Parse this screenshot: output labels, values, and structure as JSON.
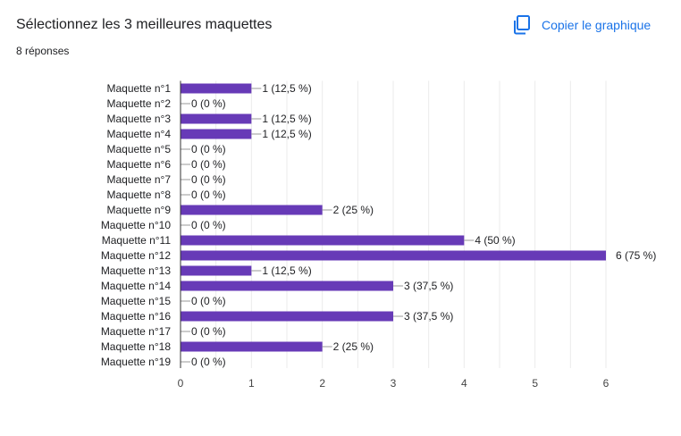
{
  "header": {
    "title": "Sélectionnez les 3 meilleures maquettes",
    "responses": "8 réponses",
    "copy_label": "Copier le graphique"
  },
  "colors": {
    "bar": "#673ab7",
    "accent": "#1a73e8",
    "grid": "#ebebeb",
    "axis": "#333333",
    "text": "#202124"
  },
  "chart_data": {
    "type": "bar",
    "orientation": "horizontal",
    "categories": [
      "Maquette n°1",
      "Maquette n°2",
      "Maquette n°3",
      "Maquette n°4",
      "Maquette n°5",
      "Maquette n°6",
      "Maquette n°7",
      "Maquette n°8",
      "Maquette n°9",
      "Maquette n°10",
      "Maquette n°11",
      "Maquette n°12",
      "Maquette n°13",
      "Maquette n°14",
      "Maquette n°15",
      "Maquette n°16",
      "Maquette n°17",
      "Maquette n°18",
      "Maquette n°19"
    ],
    "values": [
      1,
      0,
      1,
      1,
      0,
      0,
      0,
      0,
      2,
      0,
      4,
      6,
      1,
      3,
      0,
      3,
      0,
      2,
      0
    ],
    "data_labels": [
      "1 (12,5 %)",
      "0 (0 %)",
      "1 (12,5 %)",
      "1 (12,5 %)",
      "0 (0 %)",
      "0 (0 %)",
      "0 (0 %)",
      "0 (0 %)",
      "2 (25 %)",
      "0 (0 %)",
      "4 (50 %)",
      "6 (75 %)",
      "1 (12,5 %)",
      "3 (37,5 %)",
      "0 (0 %)",
      "3 (37,5 %)",
      "0 (0 %)",
      "2 (25 %)",
      "0 (0 %)"
    ],
    "xticks": [
      "0",
      "1",
      "2",
      "3",
      "4",
      "5",
      "6"
    ],
    "xlim": [
      0,
      6
    ],
    "grid": true,
    "legend": "none"
  }
}
